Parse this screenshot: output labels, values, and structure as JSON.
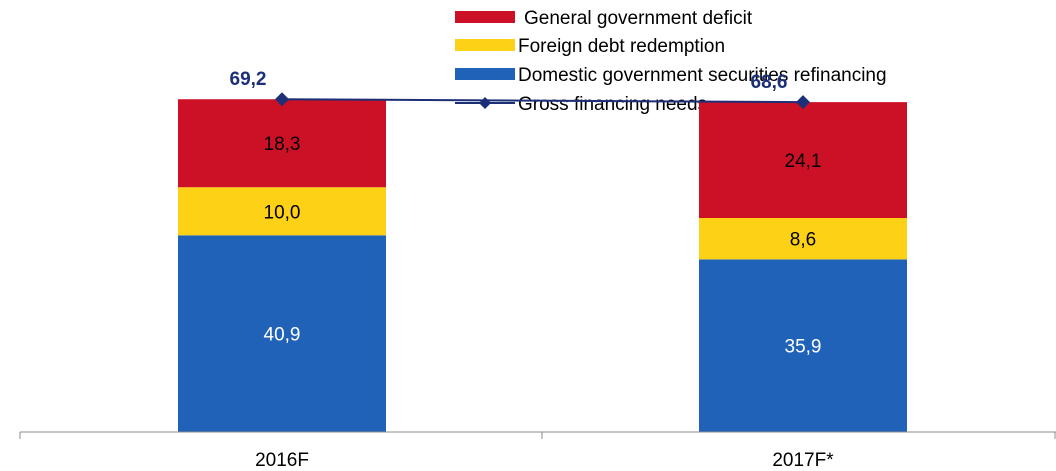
{
  "chart_data": {
    "type": "bar",
    "stacked": true,
    "categories": [
      "2016F",
      "2017F*"
    ],
    "series": [
      {
        "name": "Domestic government securities refinancing",
        "values": [
          40.9,
          35.9
        ],
        "color": "#1f62b8",
        "label_color": "#ffffff"
      },
      {
        "name": "Foreign debt redemption",
        "values": [
          10.0,
          8.6
        ],
        "color": "#fcd116",
        "label_color": "#000000"
      },
      {
        "name": "General government deficit",
        "values": [
          18.3,
          24.1
        ],
        "color": "#cc1126",
        "label_color": "#000000"
      }
    ],
    "line_series": {
      "name": "Gross financing needs",
      "values": [
        69.2,
        68.6
      ],
      "labels": [
        "69,2",
        "68,6"
      ],
      "color": "#1c2f77"
    },
    "value_labels": [
      [
        "40,9",
        "35,9"
      ],
      [
        "10,0",
        "8,6"
      ],
      [
        "18,3",
        "24,1"
      ]
    ],
    "legend_order": [
      "General government deficit",
      "Foreign debt redemption",
      "Domestic government securities refinancing",
      "Gross financing needs"
    ],
    "legend_placement": "top-right",
    "ylim": [
      0,
      80
    ],
    "grid": false
  }
}
